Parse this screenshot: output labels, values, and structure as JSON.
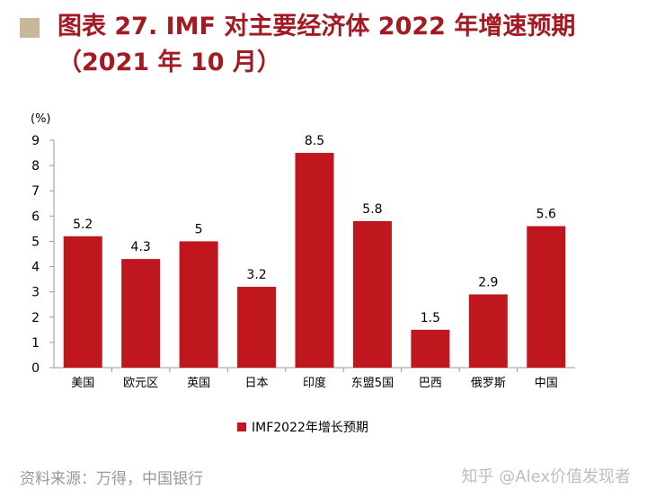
{
  "title": "图表 27. IMF 对主要经济体 2022 年增速预期（2021 年 10 月）",
  "source": "资料来源：万得，中国银行",
  "watermark": "知乎 @Alex价值发现者",
  "colors": {
    "title": "#a31a22",
    "bar": "#c0171e",
    "marker": "#c7b89a"
  },
  "chart_data": {
    "type": "bar",
    "ylabel": "(%)",
    "ylim": [
      0,
      9
    ],
    "yticks": [
      0,
      1,
      2,
      3,
      4,
      5,
      6,
      7,
      8,
      9
    ],
    "categories": [
      "美国",
      "欧元区",
      "英国",
      "日本",
      "印度",
      "东盟5国",
      "巴西",
      "俄罗斯",
      "中国"
    ],
    "series": [
      {
        "name": "IMF2022年增长预期",
        "values": [
          5.2,
          4.3,
          5,
          3.2,
          8.5,
          5.8,
          1.5,
          2.9,
          5.6
        ]
      }
    ],
    "data_labels": [
      "5.2",
      "4.3",
      "5",
      "3.2",
      "8.5",
      "5.8",
      "1.5",
      "2.9",
      "5.6"
    ],
    "legend_position": "bottom",
    "grid": false
  }
}
